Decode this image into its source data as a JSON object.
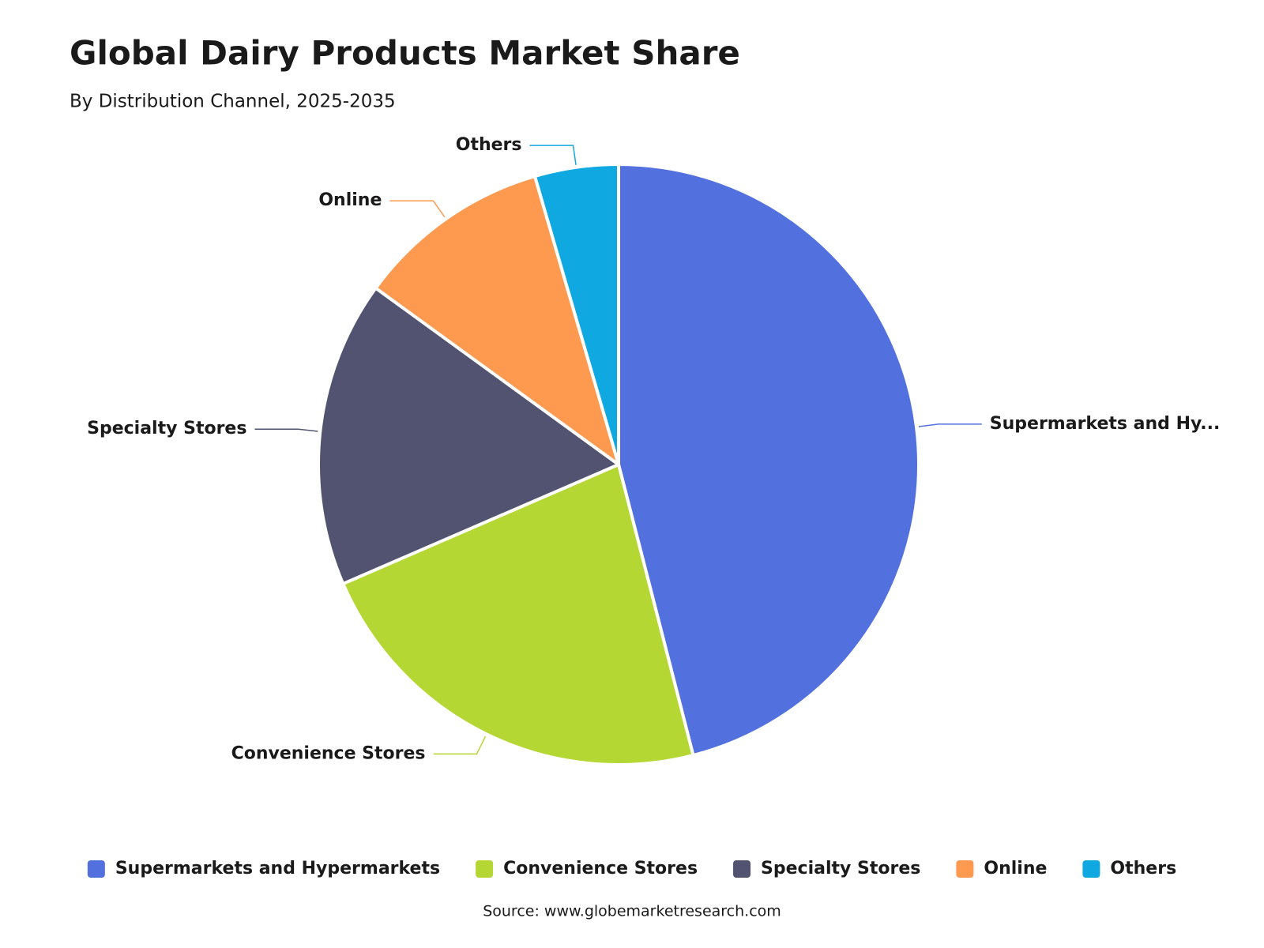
{
  "chart_data": {
    "type": "pie",
    "title": "Global Dairy Products Market Share",
    "subtitle": "By Distribution Channel, 2025-2035",
    "categories": [
      "Supermarkets and Hypermarkets",
      "Convenience Stores",
      "Specialty Stores",
      "Online",
      "Others"
    ],
    "slice_labels": [
      "Supermarkets and Hy...",
      "Convenience Stores",
      "Specialty Stores",
      "Online",
      "Others"
    ],
    "values": [
      46,
      22.5,
      16.5,
      10.5,
      4.5
    ],
    "colors": [
      "#5271df",
      "#b5d733",
      "#515370",
      "#fe9a50",
      "#10a8e0"
    ],
    "legend": "bottom",
    "source": "Source: www.globemarketresearch.com"
  }
}
